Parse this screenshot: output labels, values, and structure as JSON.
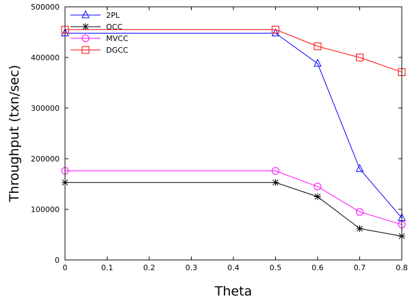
{
  "chart_data": {
    "type": "line",
    "title": "",
    "xlabel": "Theta",
    "ylabel": "Throughput (txn/sec)",
    "x": [
      0,
      0.5,
      0.6,
      0.7,
      0.8
    ],
    "x_tick_labels": [
      "0",
      "0.1",
      "0.2",
      "0.3",
      "0.4",
      "0.5",
      "0.6",
      "0.7",
      "0.8"
    ],
    "y_tick_labels": [
      "0",
      "100000",
      "200000",
      "300000",
      "400000",
      "500000"
    ],
    "xlim": [
      0,
      0.8
    ],
    "ylim": [
      0,
      500000
    ],
    "grid": false,
    "legend_position": "top-left",
    "series": [
      {
        "name": "2PL",
        "color": "#0000ff",
        "marker": "triangle",
        "values": [
          448000,
          448000,
          388000,
          180000,
          83000
        ]
      },
      {
        "name": "OCC",
        "color": "#000000",
        "marker": "asterisk",
        "values": [
          153000,
          153000,
          125000,
          62000,
          47000
        ]
      },
      {
        "name": "MVCC",
        "color": "#ff00ff",
        "marker": "circle",
        "values": [
          176000,
          176000,
          145000,
          95000,
          70000
        ]
      },
      {
        "name": "DGCC",
        "color": "#ff0000",
        "marker": "square",
        "values": [
          455000,
          455000,
          422000,
          400000,
          371000
        ]
      }
    ]
  }
}
